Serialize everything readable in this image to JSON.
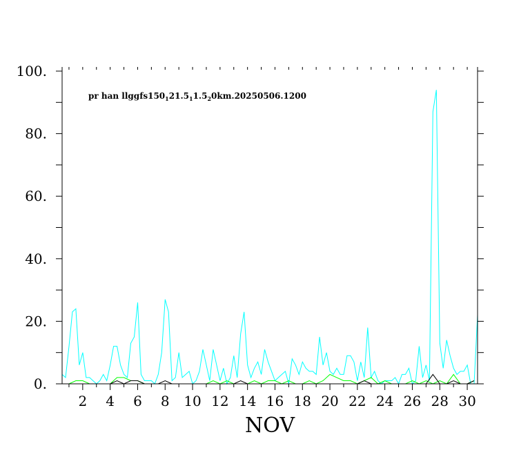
{
  "chart_data": {
    "type": "line",
    "title": {
      "parts": [
        {
          "text": "pr han llggfs150",
          "sub": false
        },
        {
          "text": "1",
          "sub": true
        },
        {
          "text": "21.5",
          "sub": false
        },
        {
          "text": "1",
          "sub": true
        },
        {
          "text": "1.5",
          "sub": false
        },
        {
          "text": "2",
          "sub": true
        },
        {
          "text": "0km.20250506.1200",
          "sub": false
        }
      ]
    },
    "xlabel": "NOV",
    "ylabel": "",
    "xlim": [
      0.5,
      30.75
    ],
    "ylim": [
      0,
      100
    ],
    "x_ticks": [
      2,
      4,
      6,
      8,
      10,
      12,
      14,
      16,
      18,
      20,
      22,
      24,
      26,
      28,
      30
    ],
    "x_tick_labels": [
      "2",
      "4",
      "6",
      "8",
      "10",
      "12",
      "14",
      "16",
      "18",
      "20",
      "22",
      "24",
      "26",
      "28",
      "30"
    ],
    "x_minor_step": 1,
    "y_ticks": [
      0,
      20,
      40,
      60,
      80,
      100
    ],
    "y_tick_labels": [
      "0.",
      "20.",
      "40.",
      "60.",
      "80.",
      "100."
    ],
    "y_minor_step": 10,
    "grid": false,
    "legend": "none",
    "series": [
      {
        "color": "#00ffff",
        "x": [
          0.5,
          0.75,
          1.0,
          1.25,
          1.5,
          1.75,
          2.0,
          2.25,
          2.5,
          2.75,
          3.0,
          3.25,
          3.5,
          3.75,
          4.0,
          4.25,
          4.5,
          4.75,
          5.0,
          5.25,
          5.5,
          5.75,
          6.0,
          6.25,
          6.5,
          6.75,
          7.0,
          7.25,
          7.5,
          7.75,
          8.0,
          8.25,
          8.5,
          8.75,
          9.0,
          9.25,
          9.5,
          9.75,
          10.0,
          10.25,
          10.5,
          10.75,
          11.0,
          11.25,
          11.5,
          11.75,
          12.0,
          12.25,
          12.5,
          12.75,
          13.0,
          13.25,
          13.5,
          13.75,
          14.0,
          14.25,
          14.5,
          14.75,
          15.0,
          15.25,
          15.5,
          15.75,
          16.0,
          16.25,
          16.5,
          16.75,
          17.0,
          17.25,
          17.5,
          17.75,
          18.0,
          18.25,
          18.5,
          18.75,
          19.0,
          19.25,
          19.5,
          19.75,
          20.0,
          20.25,
          20.5,
          20.75,
          21.0,
          21.25,
          21.5,
          21.75,
          22.0,
          22.25,
          22.5,
          22.75,
          23.0,
          23.25,
          23.5,
          23.75,
          24.0,
          24.25,
          24.5,
          24.75,
          25.0,
          25.25,
          25.5,
          25.75,
          26.0,
          26.25,
          26.5,
          26.75,
          27.0,
          27.25,
          27.5,
          27.75,
          28.0,
          28.25,
          28.5,
          28.75,
          29.0,
          29.25,
          29.5,
          29.75,
          30.0,
          30.25,
          30.5,
          30.75
        ],
        "y": [
          3,
          2,
          12,
          23,
          24,
          6,
          10,
          2,
          2,
          1,
          0,
          1,
          3,
          1,
          6,
          12,
          12,
          6,
          3,
          2,
          13,
          15,
          26,
          3,
          1,
          1,
          1,
          0,
          3,
          10,
          27,
          23,
          1,
          2,
          10,
          2,
          3,
          4,
          0,
          1,
          4,
          11,
          6,
          1,
          11,
          6,
          1,
          5,
          0,
          2,
          9,
          2,
          16,
          23,
          6,
          2,
          5,
          7,
          3,
          11,
          7,
          4,
          1,
          2,
          3,
          4,
          0,
          8,
          6,
          3,
          7,
          5,
          4,
          4,
          3,
          15,
          6,
          10,
          4,
          3,
          5,
          3,
          3,
          9,
          9,
          7,
          1,
          7,
          2,
          18,
          2,
          4,
          1,
          0,
          1,
          1,
          1,
          2,
          0,
          3,
          3,
          5,
          0,
          1,
          12,
          2,
          6,
          1,
          87,
          94,
          13,
          5,
          14,
          9,
          5,
          3,
          4,
          4,
          6,
          0,
          0,
          22
        ]
      },
      {
        "color": "#00ff00",
        "x": [
          0.5,
          1.0,
          1.5,
          2.0,
          2.5,
          3.0,
          3.5,
          4.0,
          4.5,
          5.0,
          5.5,
          6.0,
          6.5,
          7.0,
          7.5,
          8.0,
          8.5,
          9.0,
          9.5,
          10.0,
          10.5,
          11.0,
          11.5,
          12.0,
          12.5,
          13.0,
          13.5,
          14.0,
          14.5,
          15.0,
          15.5,
          16.0,
          16.5,
          17.0,
          17.5,
          18.0,
          18.5,
          19.0,
          19.5,
          20.0,
          20.5,
          21.0,
          21.5,
          22.0,
          22.5,
          23.0,
          23.5,
          24.0,
          24.5,
          25.0,
          25.5,
          26.0,
          26.5,
          27.0,
          27.5,
          28.0,
          28.5,
          29.0,
          29.5,
          30.0,
          30.5
        ],
        "y": [
          0,
          0,
          1,
          1,
          0,
          0,
          0,
          0,
          2,
          2,
          1,
          1,
          0,
          0,
          0,
          0,
          0,
          0,
          0,
          0,
          0,
          0,
          1,
          0,
          1,
          0,
          0,
          0,
          1,
          0,
          1,
          1,
          0,
          1,
          0,
          0,
          1,
          0,
          1,
          3,
          2,
          1,
          1,
          0,
          1,
          2,
          0,
          1,
          0,
          0,
          0,
          1,
          0,
          1,
          0,
          1,
          0,
          3,
          0,
          0,
          1
        ]
      },
      {
        "color": "#000000",
        "x": [
          0.5,
          1.0,
          1.5,
          2.0,
          2.5,
          3.0,
          3.5,
          4.0,
          4.5,
          5.0,
          5.5,
          6.0,
          6.5,
          7.0,
          7.5,
          8.0,
          8.5,
          9.0,
          9.5,
          10.0,
          10.5,
          11.0,
          11.5,
          12.0,
          12.5,
          13.0,
          13.5,
          14.0,
          14.5,
          15.0,
          15.5,
          16.0,
          16.5,
          17.0,
          17.5,
          18.0,
          18.5,
          19.0,
          19.5,
          20.0,
          20.5,
          21.0,
          21.5,
          22.0,
          22.5,
          23.0,
          23.5,
          24.0,
          24.5,
          25.0,
          25.5,
          26.0,
          26.5,
          27.0,
          27.5,
          28.0,
          28.5,
          29.0,
          29.5,
          30.0,
          30.5
        ],
        "y": [
          0,
          0,
          0,
          0,
          0,
          0,
          0,
          0,
          1,
          0,
          1,
          1,
          0,
          0,
          0,
          1,
          0,
          0,
          0,
          0,
          0,
          0,
          0,
          0,
          0,
          0,
          1,
          0,
          0,
          0,
          0,
          0,
          0,
          0,
          0,
          0,
          0,
          0,
          0,
          0,
          0,
          0,
          0,
          0,
          1,
          0,
          0,
          0,
          0,
          0,
          0,
          0,
          0,
          0,
          3,
          0,
          0,
          1,
          0,
          0,
          1
        ]
      }
    ]
  }
}
